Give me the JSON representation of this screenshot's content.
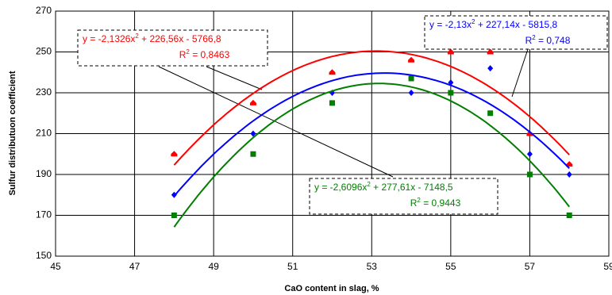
{
  "chart_data": {
    "type": "scatter",
    "x_label": "CaO content in slag, %",
    "y_label": "Sulfur distributuon coefficient",
    "x": [
      48,
      50,
      52,
      54,
      55,
      56,
      57,
      58
    ],
    "xlim": [
      45,
      59
    ],
    "xticks": [
      45,
      47,
      49,
      51,
      53,
      55,
      57,
      59
    ],
    "ylim": [
      150,
      270
    ],
    "yticks": [
      150,
      170,
      190,
      210,
      230,
      250,
      270
    ],
    "grid": true,
    "series": [
      {
        "color": "#ff0000",
        "marker": "triangle",
        "values": [
          200,
          225,
          240,
          246,
          250,
          250,
          210,
          195
        ],
        "trend": {
          "coefficients": [
            -2.1326,
            226.56,
            -5766.8
          ],
          "equation": [
            "y = -2,1326x",
            "2",
            " + 226,56x - 5766,8"
          ],
          "r2": [
            "R",
            "2",
            " = 0,8463"
          ]
        }
      },
      {
        "color": "#0000ff",
        "marker": "diamond",
        "values": [
          180,
          210,
          230,
          230,
          235,
          242,
          200,
          190
        ],
        "trend": {
          "coefficients": [
            -2.13,
            227.14,
            -5815.8
          ],
          "equation": [
            "y = -2,13x",
            "2",
            " + 227,14x - 5815,8"
          ],
          "r2": [
            "R",
            "2",
            " = 0,748"
          ]
        }
      },
      {
        "color": "#008000",
        "marker": "square",
        "values": [
          170,
          200,
          225,
          237,
          230,
          220,
          190,
          170
        ],
        "trend": {
          "coefficients": [
            -2.6096,
            277.61,
            -7148.5
          ],
          "equation": [
            "y = -2,6096x",
            "2",
            " + 277,61x - 7148,5"
          ],
          "r2": [
            "R",
            "2",
            " = 0,9443"
          ]
        }
      }
    ]
  }
}
